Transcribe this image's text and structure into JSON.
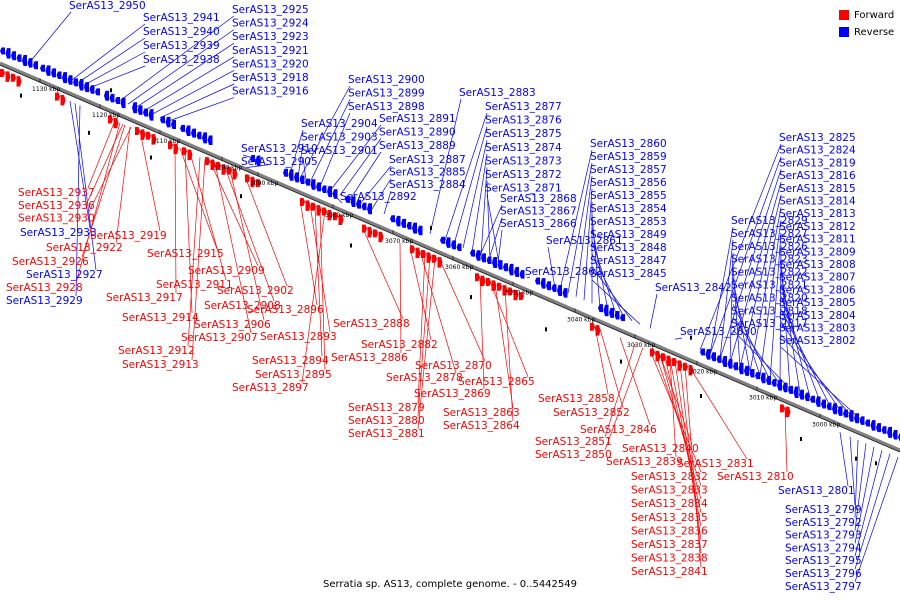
{
  "caption": "Serratia sp. AS13, complete genome. - 0..5442549",
  "legend": [
    {
      "label": "Forward",
      "color": "#ff0000"
    },
    {
      "label": "Reverse",
      "color": "#0000ff"
    }
  ],
  "colors": {
    "forward": "#ff0000",
    "reverse": "#0000ff",
    "axis": "#808080"
  },
  "ticks": [
    "1130 kbp",
    "1120 kbp",
    "1110 kbp",
    "1100 kbp",
    "3090 kbp",
    "3080 kbp",
    "3070 kbp",
    "3060 kbp",
    "3050 kbp",
    "3040 kbp",
    "3030 kbp",
    "3020 kbp",
    "3010 kbp",
    "3000 kbp"
  ],
  "reverse_labels": [
    "SerAS13_2950",
    "SerAS13_2941",
    "SerAS13_2940",
    "SerAS13_2939",
    "SerAS13_2938",
    "SerAS13_2925",
    "SerAS13_2924",
    "SerAS13_2923",
    "SerAS13_2921",
    "SerAS13_2920",
    "SerAS13_2918",
    "SerAS13_2916",
    "SerAS13_2910",
    "SerAS13_2905",
    "SerAS13_2904",
    "SerAS13_2903",
    "SerAS13_2901",
    "SerAS13_2900",
    "SerAS13_2899",
    "SerAS13_2898",
    "SerAS13_2891",
    "SerAS13_2890",
    "SerAS13_2889",
    "SerAS13_2887",
    "SerAS13_2885",
    "SerAS13_2884",
    "SerAS13_2892",
    "SerAS13_2883",
    "SerAS13_2877",
    "SerAS13_2876",
    "SerAS13_2875",
    "SerAS13_2874",
    "SerAS13_2873",
    "SerAS13_2872",
    "SerAS13_2871",
    "SerAS13_2868",
    "SerAS13_2867",
    "SerAS13_2866",
    "SerAS13_2860",
    "SerAS13_2859",
    "SerAS13_2857",
    "SerAS13_2856",
    "SerAS13_2855",
    "SerAS13_2854",
    "SerAS13_2853",
    "SerAS13_2849",
    "SerAS13_2848",
    "SerAS13_2847",
    "SerAS13_2845",
    "SerAS13_2842",
    "SerAS13_2861",
    "SerAS13_2862",
    "SerAS13_2830",
    "SerAS13_2825",
    "SerAS13_2824",
    "SerAS13_2819",
    "SerAS13_2816",
    "SerAS13_2815",
    "SerAS13_2814",
    "SerAS13_2813",
    "SerAS13_2812",
    "SerAS13_2811",
    "SerAS13_2809",
    "SerAS13_2808",
    "SerAS13_2807",
    "SerAS13_2806",
    "SerAS13_2805",
    "SerAS13_2804",
    "SerAS13_2803",
    "SerAS13_2802",
    "SerAS13_2829",
    "SerAS13_2827",
    "SerAS13_2826",
    "SerAS13_2823",
    "SerAS13_2822",
    "SerAS13_2821",
    "SerAS13_2820",
    "SerAS13_2818",
    "SerAS13_2817",
    "SerAS13_2933",
    "SerAS13_2927",
    "SerAS13_2929",
    "SerAS13_2801",
    "SerAS13_2799",
    "SerAS13_2792",
    "SerAS13_2793",
    "SerAS13_2794",
    "SerAS13_2795",
    "SerAS13_2796",
    "SerAS13_2797"
  ],
  "forward_labels": [
    "SerAS13_2937",
    "SerAS13_2936",
    "SerAS13_2930",
    "SerAS13_2919",
    "SerAS13_2922",
    "SerAS13_2926",
    "SerAS13_2928",
    "SerAS13_2915",
    "SerAS13_2909",
    "SerAS13_2911",
    "SerAS13_2917",
    "SerAS13_2914",
    "SerAS13_2908",
    "SerAS13_2906",
    "SerAS13_2907",
    "SerAS13_2912",
    "SerAS13_2913",
    "SerAS13_2902",
    "SerAS13_2896",
    "SerAS13_2893",
    "SerAS13_2894",
    "SerAS13_2895",
    "SerAS13_2897",
    "SerAS13_2888",
    "SerAS13_2882",
    "SerAS13_2886",
    "SerAS13_2878",
    "SerAS13_2870",
    "SerAS13_2865",
    "SerAS13_2869",
    "SerAS13_2879",
    "SerAS13_2880",
    "SerAS13_2881",
    "SerAS13_2863",
    "SerAS13_2864",
    "SerAS13_2858",
    "SerAS13_2852",
    "SerAS13_2846",
    "SerAS13_2851",
    "SerAS13_2850",
    "SerAS13_2840",
    "SerAS13_2839",
    "SerAS13_2831",
    "SerAS13_2832",
    "SerAS13_2833",
    "SerAS13_2834",
    "SerAS13_2835",
    "SerAS13_2836",
    "SerAS13_2837",
    "SerAS13_2838",
    "SerAS13_2841",
    "SerAS13_2810"
  ]
}
